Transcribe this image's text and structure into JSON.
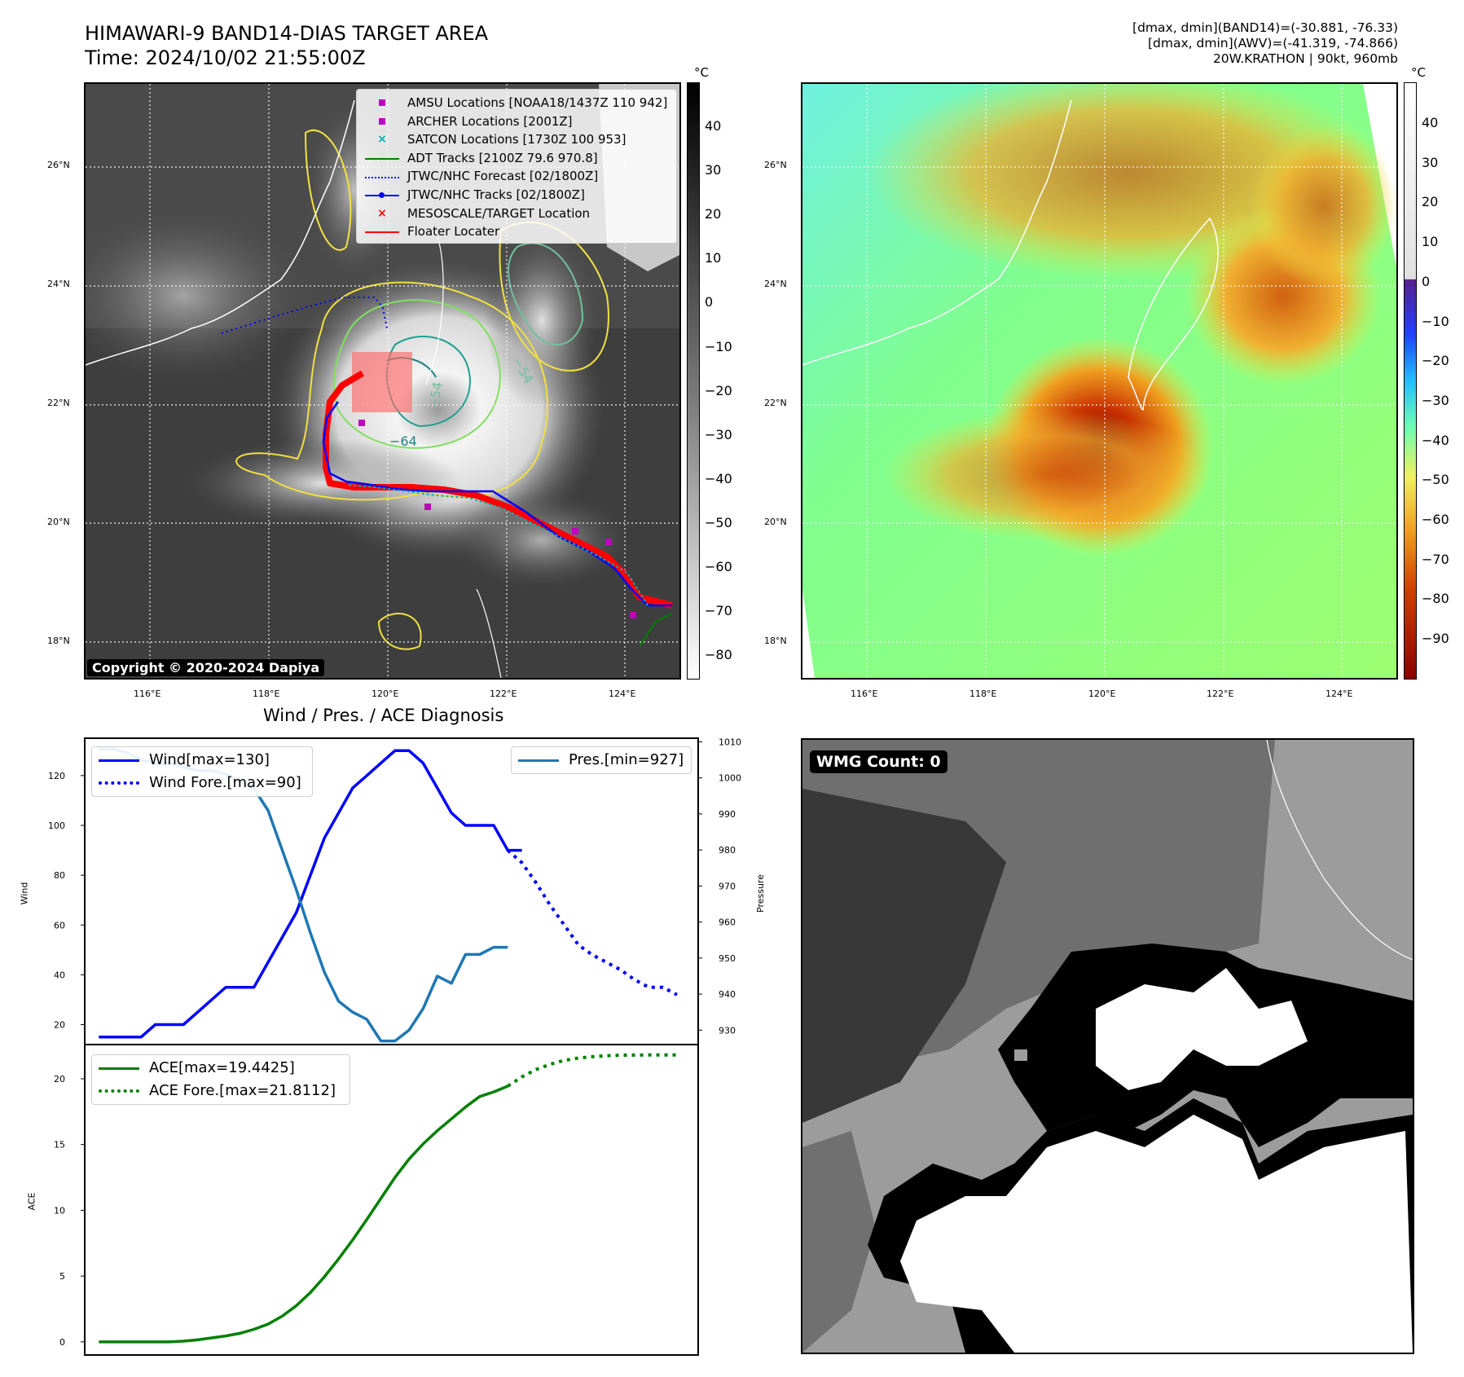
{
  "header": {
    "title_line1": "HIMAWARI-9 BAND14-DIAS TARGET AREA",
    "title_line2": "Time: 2024/10/02 21:55:00Z",
    "meta_line1": "[dmax, dmin](BAND14)=(-30.881, -76.33)",
    "meta_line2": "[dmax, dmin](AWV)=(-41.319, -74.866)",
    "meta_line3": "20W.KRATHON | 90kt, 960mb"
  },
  "map_axes": {
    "lat_labels": [
      "26°N",
      "24°N",
      "22°N",
      "20°N",
      "18°N"
    ],
    "lon_labels": [
      "116°E",
      "118°E",
      "120°E",
      "122°E",
      "124°E"
    ]
  },
  "ir_panel": {
    "legend": [
      {
        "label": "AMSU Locations [NOAA18/1437Z 110 942]",
        "symbol": "square",
        "color": "#c000c0"
      },
      {
        "label": "ARCHER Locations [2001Z]",
        "symbol": "square",
        "color": "#c000c0"
      },
      {
        "label": "SATCON Locations [1730Z 100 953]",
        "symbol": "x",
        "color": "#00b0b0"
      },
      {
        "label": "ADT Tracks [2100Z 79.6 970.8]",
        "symbol": "line",
        "color": "#008000"
      },
      {
        "label": "JTWC/NHC Forecast [02/1800Z]",
        "symbol": "dotted",
        "color": "#0000ff"
      },
      {
        "label": "JTWC/NHC Tracks [02/1800Z]",
        "symbol": "line-dot",
        "color": "#0000ff"
      },
      {
        "label": "MESOSCALE/TARGET Location",
        "symbol": "x",
        "color": "#ff0000"
      },
      {
        "label": "Floater Locater",
        "symbol": "line",
        "color": "#ff0000"
      }
    ],
    "contour_labels": [
      "−64",
      "−54",
      "−54"
    ],
    "copyright": "Copyright © 2020-2024 Dapiya",
    "colorbar_unit": "°C",
    "colorbar_ticks": [
      "40",
      "30",
      "20",
      "10",
      "0",
      "−10",
      "−20",
      "−30",
      "−40",
      "−50",
      "−60",
      "−70",
      "−80"
    ]
  },
  "awv_panel": {
    "colorbar_unit": "°C",
    "colorbar_ticks": [
      "40",
      "30",
      "20",
      "10",
      "0",
      "−10",
      "−20",
      "−30",
      "−40",
      "−50",
      "−60",
      "−70",
      "−80",
      "−90"
    ]
  },
  "wmg_panel": {
    "label": "WMG Count: 0"
  },
  "chart_data": [
    {
      "type": "line",
      "title": "Wind / Pres. / ACE Diagnosis",
      "ylabel": "Wind",
      "ylabel2": "Pressure",
      "ylim": [
        12,
        135
      ],
      "ylim2": [
        926,
        1011
      ],
      "yticks": [
        20,
        40,
        60,
        80,
        100,
        120
      ],
      "yticks2": [
        930,
        940,
        950,
        960,
        970,
        980,
        990,
        1000,
        1010
      ],
      "series": [
        {
          "name": "Wind[max=130]",
          "color": "#0000ff",
          "style": "solid",
          "x": [
            0,
            1,
            2,
            3,
            4,
            5,
            6,
            7,
            8,
            9,
            10,
            11,
            12,
            13,
            14,
            15,
            16,
            17,
            18,
            19,
            20,
            21,
            22,
            23,
            24,
            25,
            26,
            27,
            28,
            29,
            30
          ],
          "values": [
            15,
            15,
            15,
            15,
            20,
            20,
            20,
            25,
            30,
            35,
            35,
            35,
            45,
            55,
            65,
            80,
            95,
            105,
            115,
            120,
            125,
            130,
            130,
            125,
            115,
            105,
            100,
            100,
            100,
            90,
            90
          ]
        },
        {
          "name": "Wind Fore.[max=90]",
          "color": "#0000ff",
          "style": "dotted",
          "x": [
            29,
            30,
            31,
            32,
            33,
            34,
            35,
            36,
            37,
            38,
            39,
            40,
            41
          ],
          "values": [
            90,
            85,
            77,
            68,
            60,
            52,
            48,
            45,
            42,
            38,
            35,
            35,
            32
          ]
        },
        {
          "name": "Pres.[min=927]",
          "color": "#1f77b4",
          "style": "solid",
          "axis": "right",
          "x": [
            0,
            1,
            2,
            3,
            4,
            5,
            6,
            7,
            8,
            9,
            10,
            11,
            12,
            13,
            14,
            15,
            16,
            17,
            18,
            19,
            20,
            21,
            22,
            23,
            24,
            25,
            26,
            27,
            28,
            29
          ],
          "values": [
            1008,
            1008,
            1007,
            1005,
            1004,
            1004,
            1003,
            1002,
            1002,
            1001,
            999,
            997,
            991,
            980,
            969,
            957,
            946,
            938,
            935,
            933,
            927,
            927,
            930,
            936,
            945,
            943,
            951,
            951,
            953,
            953
          ]
        }
      ]
    },
    {
      "type": "line",
      "ylabel": "ACE",
      "ylim": [
        -1,
        22.6
      ],
      "yticks": [
        0,
        5,
        10,
        15,
        20
      ],
      "series": [
        {
          "name": "ACE[max=19.4425]",
          "color": "#008000",
          "style": "solid",
          "x": [
            0,
            1,
            2,
            3,
            4,
            5,
            6,
            7,
            8,
            9,
            10,
            11,
            12,
            13,
            14,
            15,
            16,
            17,
            18,
            19,
            20,
            21,
            22,
            23,
            24,
            25,
            26,
            27,
            28,
            29
          ],
          "values": [
            0,
            0,
            0,
            0,
            0,
            0,
            0.05,
            0.15,
            0.3,
            0.45,
            0.65,
            0.95,
            1.35,
            1.95,
            2.75,
            3.75,
            4.95,
            6.3,
            7.75,
            9.3,
            10.9,
            12.5,
            13.9,
            15.05,
            16.05,
            16.95,
            17.85,
            18.65,
            19.0,
            19.4425
          ]
        },
        {
          "name": "ACE Fore.[max=21.8112]",
          "color": "#008000",
          "style": "dotted",
          "x": [
            29,
            30,
            31,
            32,
            33,
            34,
            35,
            36,
            37,
            38,
            39,
            40,
            41
          ],
          "values": [
            19.4425,
            20.15,
            20.7,
            21.1,
            21.4,
            21.58,
            21.68,
            21.75,
            21.79,
            21.8,
            21.81,
            21.8112,
            21.8112
          ]
        }
      ]
    }
  ]
}
